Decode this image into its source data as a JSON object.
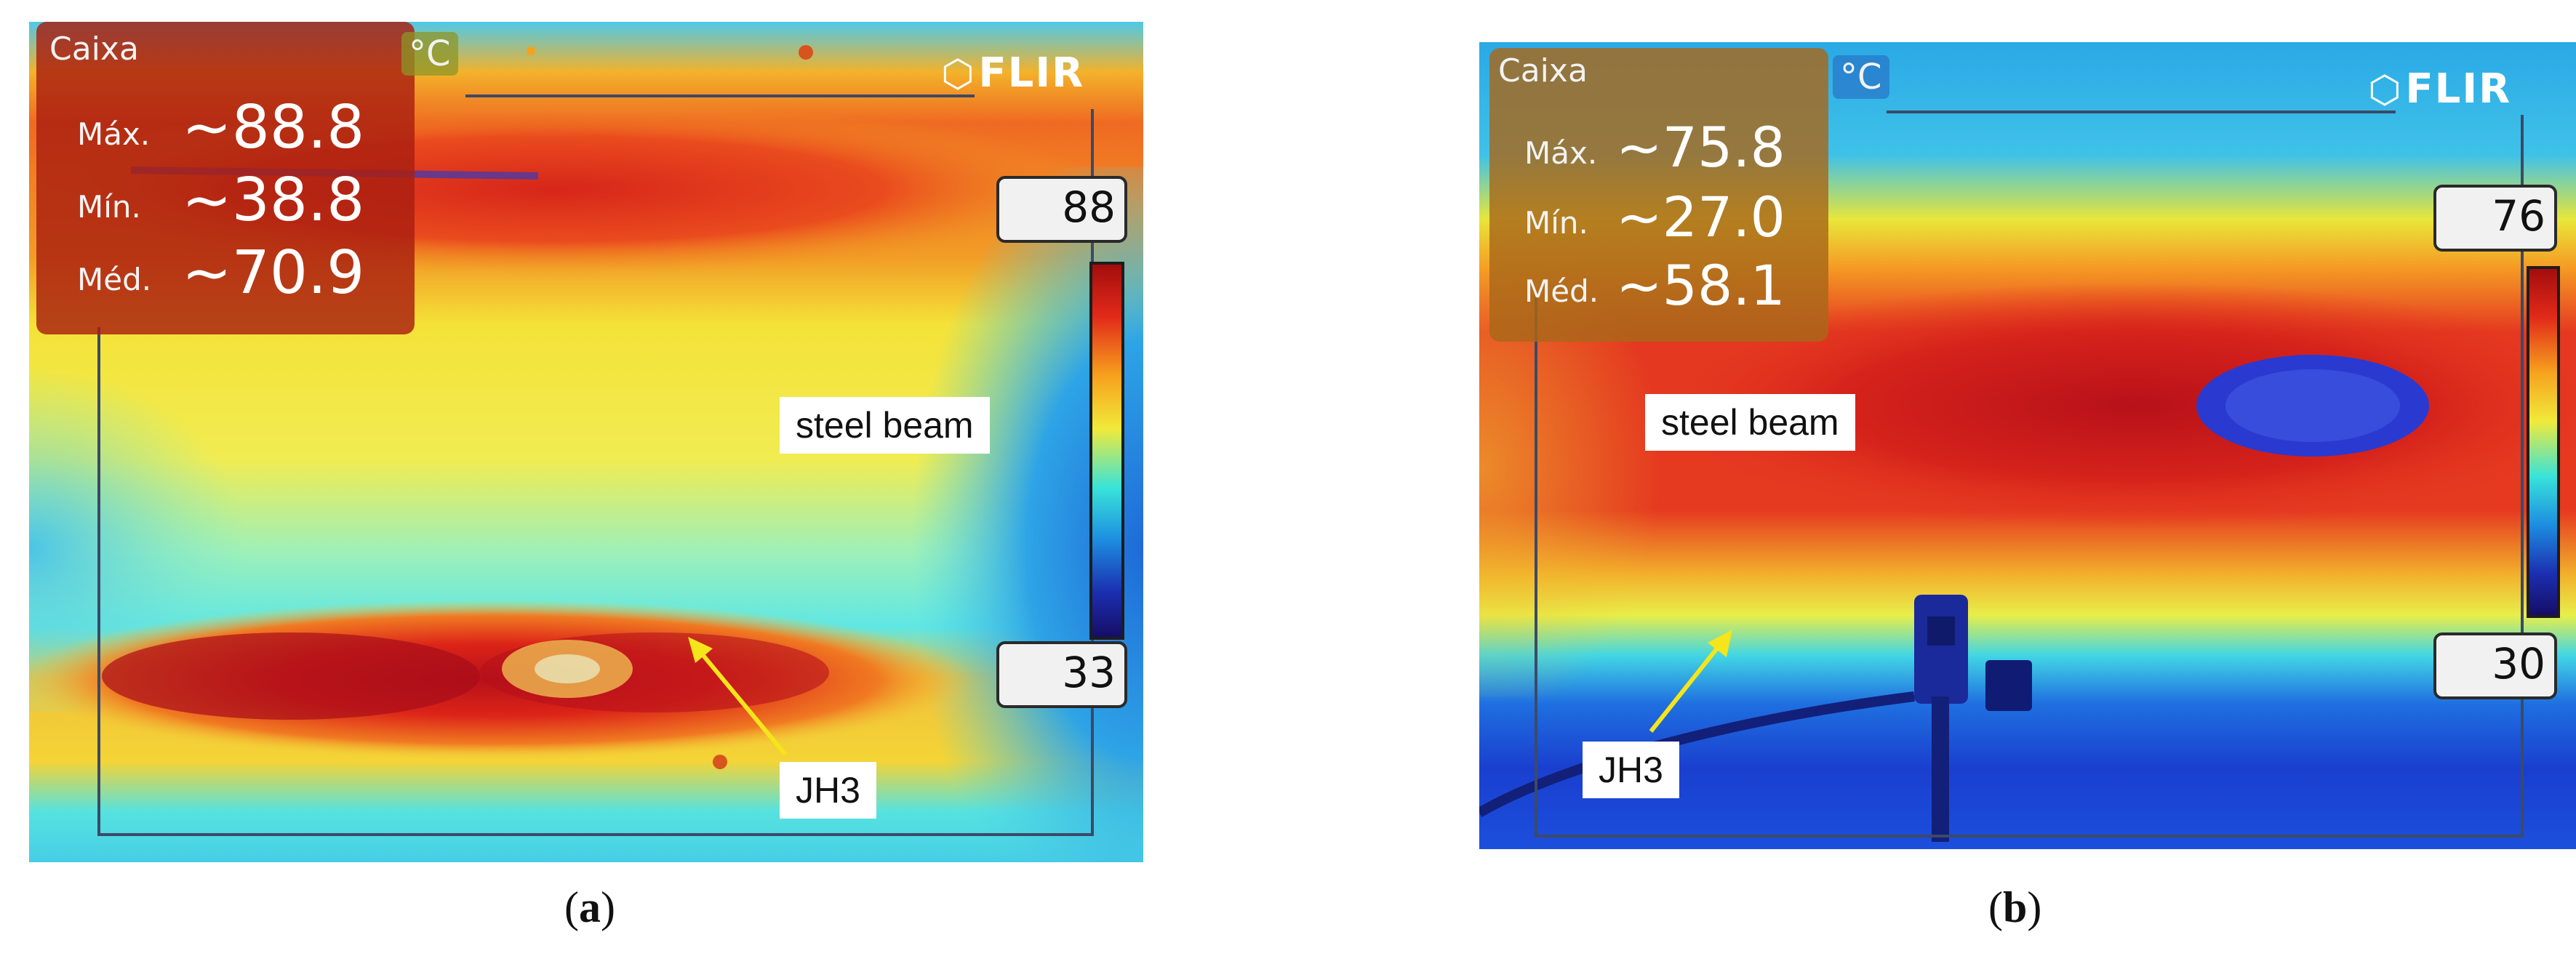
{
  "panels": [
    {
      "caption_letter": "a",
      "mode": "Caixa",
      "unit": "°C",
      "logo": "FLIR",
      "stats": {
        "max_label": "Máx.",
        "max_value": "~88.8",
        "min_label": "Mín.",
        "min_value": "~38.8",
        "avg_label": "Méd.",
        "avg_value": "~70.9"
      },
      "scale_high": "88",
      "scale_low": "33",
      "annotations": {
        "beam": "steel beam",
        "sensor": "JH3"
      }
    },
    {
      "caption_letter": "b",
      "mode": "Caixa",
      "unit": "°C",
      "logo": "FLIR",
      "stats": {
        "max_label": "Máx.",
        "max_value": "~75.8",
        "min_label": "Mín.",
        "min_value": "~27.0",
        "avg_label": "Méd.",
        "avg_value": "~58.1"
      },
      "scale_high": "76",
      "scale_low": "30",
      "annotations": {
        "beam": "steel beam",
        "sensor": "JH3"
      }
    }
  ],
  "colors": {
    "callout_arrow": "#f5e51b",
    "stats_box_a": "#b01e10",
    "stats_box_b": "#a8681a"
  }
}
